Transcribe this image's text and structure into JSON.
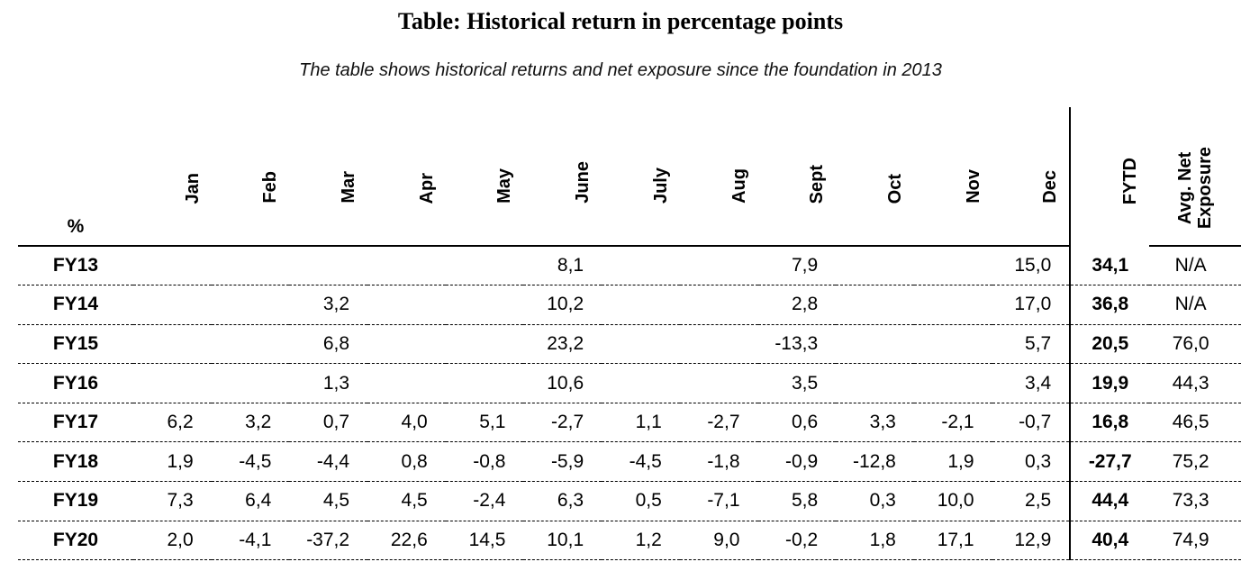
{
  "title": "Table: Historical return in percentage points",
  "subtitle": "The table shows historical returns and net exposure since the foundation in 2013",
  "colors": {
    "ink": "#000000",
    "background": "#ffffff"
  },
  "table": {
    "corner_label": "%",
    "month_headers": [
      "Jan",
      "Feb",
      "Mar",
      "Apr",
      "May",
      "June",
      "July",
      "Aug",
      "Sept",
      "Oct",
      "Nov",
      "Dec"
    ],
    "fytd_header": "FYTD",
    "avg_net_header": "Avg. Net\nExposure",
    "rows": [
      {
        "label": "FY13",
        "months": [
          "",
          "",
          "",
          "",
          "",
          "8,1",
          "",
          "",
          "7,9",
          "",
          "",
          "15,0"
        ],
        "fytd": "34,1",
        "avg_net": "N/A"
      },
      {
        "label": "FY14",
        "months": [
          "",
          "",
          "3,2",
          "",
          "",
          "10,2",
          "",
          "",
          "2,8",
          "",
          "",
          "17,0"
        ],
        "fytd": "36,8",
        "avg_net": "N/A"
      },
      {
        "label": "FY15",
        "months": [
          "",
          "",
          "6,8",
          "",
          "",
          "23,2",
          "",
          "",
          "-13,3",
          "",
          "",
          "5,7"
        ],
        "fytd": "20,5",
        "avg_net": "76,0"
      },
      {
        "label": "FY16",
        "months": [
          "",
          "",
          "1,3",
          "",
          "",
          "10,6",
          "",
          "",
          "3,5",
          "",
          "",
          "3,4"
        ],
        "fytd": "19,9",
        "avg_net": "44,3"
      },
      {
        "label": "FY17",
        "months": [
          "6,2",
          "3,2",
          "0,7",
          "4,0",
          "5,1",
          "-2,7",
          "1,1",
          "-2,7",
          "0,6",
          "3,3",
          "-2,1",
          "-0,7"
        ],
        "fytd": "16,8",
        "avg_net": "46,5"
      },
      {
        "label": "FY18",
        "months": [
          "1,9",
          "-4,5",
          "-4,4",
          "0,8",
          "-0,8",
          "-5,9",
          "-4,5",
          "-1,8",
          "-0,9",
          "-12,8",
          "1,9",
          "0,3"
        ],
        "fytd": "-27,7",
        "avg_net": "75,2"
      },
      {
        "label": "FY19",
        "months": [
          "7,3",
          "6,4",
          "4,5",
          "4,5",
          "-2,4",
          "6,3",
          "0,5",
          "-7,1",
          "5,8",
          "0,3",
          "10,0",
          "2,5"
        ],
        "fytd": "44,4",
        "avg_net": "73,3"
      },
      {
        "label": "FY20",
        "months": [
          "2,0",
          "-4,1",
          "-37,2",
          "22,6",
          "14,5",
          "10,1",
          "1,2",
          "9,0",
          "-0,2",
          "1,8",
          "17,1",
          "12,9"
        ],
        "fytd": "40,4",
        "avg_net": "74,9"
      }
    ]
  },
  "chart_data": {
    "type": "table",
    "title": "Table: Historical return in percentage points",
    "subtitle": "The table shows historical returns and net exposure since the foundation in 2013",
    "unit": "%",
    "decimal_separator": ",",
    "columns": [
      "Jan",
      "Feb",
      "Mar",
      "Apr",
      "May",
      "June",
      "July",
      "Aug",
      "Sept",
      "Oct",
      "Nov",
      "Dec",
      "FYTD",
      "Avg. Net Exposure"
    ],
    "row_labels": [
      "FY13",
      "FY14",
      "FY15",
      "FY16",
      "FY17",
      "FY18",
      "FY19",
      "FY20"
    ],
    "values": [
      [
        null,
        null,
        null,
        null,
        null,
        8.1,
        null,
        null,
        7.9,
        null,
        null,
        15.0,
        34.1,
        "N/A"
      ],
      [
        null,
        null,
        3.2,
        null,
        null,
        10.2,
        null,
        null,
        2.8,
        null,
        null,
        17.0,
        36.8,
        "N/A"
      ],
      [
        null,
        null,
        6.8,
        null,
        null,
        23.2,
        null,
        null,
        -13.3,
        null,
        null,
        5.7,
        20.5,
        76.0
      ],
      [
        null,
        null,
        1.3,
        null,
        null,
        10.6,
        null,
        null,
        3.5,
        null,
        null,
        3.4,
        19.9,
        44.3
      ],
      [
        6.2,
        3.2,
        0.7,
        4.0,
        5.1,
        -2.7,
        1.1,
        -2.7,
        0.6,
        3.3,
        -2.1,
        -0.7,
        16.8,
        46.5
      ],
      [
        1.9,
        -4.5,
        -4.4,
        0.8,
        -0.8,
        -5.9,
        -4.5,
        -1.8,
        -0.9,
        -12.8,
        1.9,
        0.3,
        -27.7,
        75.2
      ],
      [
        7.3,
        6.4,
        4.5,
        4.5,
        -2.4,
        6.3,
        0.5,
        -7.1,
        5.8,
        0.3,
        10.0,
        2.5,
        44.4,
        73.3
      ],
      [
        2.0,
        -4.1,
        -37.2,
        22.6,
        14.5,
        10.1,
        1.2,
        9.0,
        -0.2,
        1.8,
        17.1,
        12.9,
        40.4,
        74.9
      ]
    ]
  }
}
